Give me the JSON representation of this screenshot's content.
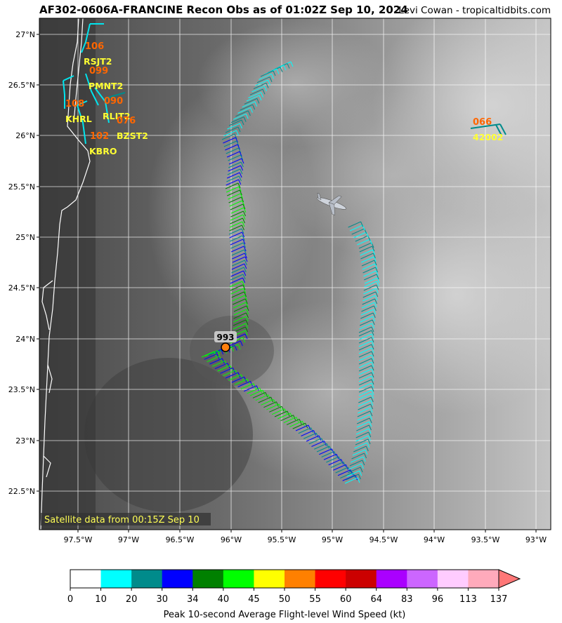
{
  "header": {
    "title": "AF302-0606A-FRANCINE Recon Obs as of 01:02Z Sep 10, 2024",
    "credit": "Levi Cowan - tropicaltidbits.com"
  },
  "map": {
    "lat_ticks": [
      "27°N",
      "26.5°N",
      "26°N",
      "25.5°N",
      "25°N",
      "24.5°N",
      "24°N",
      "23.5°N",
      "23°N",
      "22.5°N"
    ],
    "lon_ticks": [
      "97.5°W",
      "97°W",
      "96.5°W",
      "96°W",
      "95.5°W",
      "95°W",
      "94.5°W",
      "94°W",
      "93.5°W",
      "93°W"
    ],
    "satellite_note": "Satellite data from 00:15Z Sep 10",
    "min_pressure_label": "993"
  },
  "stations": [
    {
      "id": "RSJT2",
      "value": "106"
    },
    {
      "id": "PMNT2",
      "value": "099"
    },
    {
      "id": "RLIT2",
      "value": "090"
    },
    {
      "id": "KHRL",
      "value": "108"
    },
    {
      "id": "BZST2",
      "value": "076"
    },
    {
      "id": "KBRO",
      "value": "102"
    },
    {
      "id": "42002",
      "value": "066"
    }
  ],
  "colorbar": {
    "label": "Peak 10-second Average Flight-level Wind Speed (kt)",
    "ticks": [
      "0",
      "10",
      "20",
      "30",
      "34",
      "40",
      "45",
      "50",
      "55",
      "60",
      "64",
      "83",
      "96",
      "113",
      "137"
    ],
    "colors": [
      "#ffffff",
      "#00ffff",
      "#008b8b",
      "#0000ff",
      "#008000",
      "#00ff00",
      "#ffff00",
      "#ff8000",
      "#ff0000",
      "#cc0000",
      "#aa00ff",
      "#cc66ff",
      "#ffccff",
      "#ffaabb",
      "#ff7777"
    ]
  }
}
